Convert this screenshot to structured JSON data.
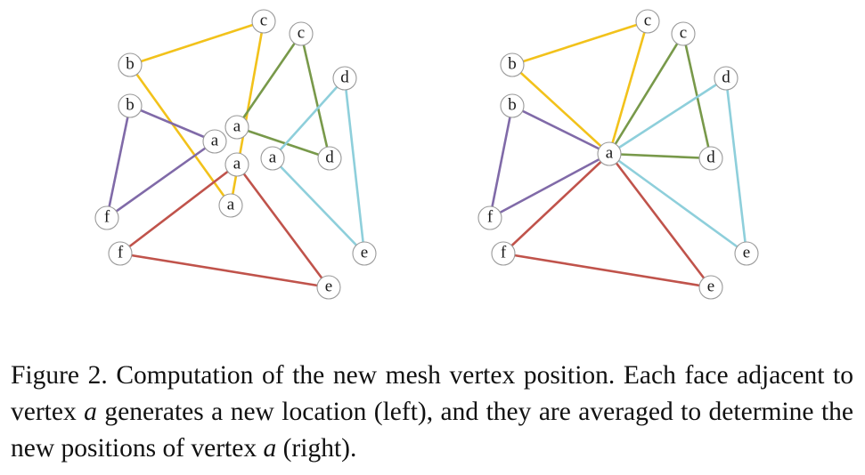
{
  "colors": {
    "b_c": "#f2c21b",
    "c_d": "#78994a",
    "d_e": "#8ecfdb",
    "b_f": "#806aa8",
    "f_e": "#c0534b"
  },
  "left_graph": {
    "nodes": [
      {
        "id": "c_top",
        "label": "c"
      },
      {
        "id": "c_right",
        "label": "c"
      },
      {
        "id": "b_top",
        "label": "b"
      },
      {
        "id": "b_mid",
        "label": "b"
      },
      {
        "id": "d_top",
        "label": "d"
      },
      {
        "id": "a_green",
        "label": "a"
      },
      {
        "id": "a_purple",
        "label": "a"
      },
      {
        "id": "a_red",
        "label": "a"
      },
      {
        "id": "a_cyan",
        "label": "a"
      },
      {
        "id": "d_mid",
        "label": "d"
      },
      {
        "id": "a_yellow",
        "label": "a"
      },
      {
        "id": "f_top",
        "label": "f"
      },
      {
        "id": "f_bottom",
        "label": "f"
      },
      {
        "id": "e_right",
        "label": "e"
      },
      {
        "id": "e_bottom",
        "label": "e"
      }
    ],
    "edges": [
      {
        "from": "b_top",
        "to": "c_top",
        "color": "b_c"
      },
      {
        "from": "b_top",
        "to": "a_yellow",
        "color": "b_c"
      },
      {
        "from": "c_top",
        "to": "a_yellow",
        "color": "b_c"
      },
      {
        "from": "c_right",
        "to": "a_green",
        "color": "c_d"
      },
      {
        "from": "c_right",
        "to": "d_mid",
        "color": "c_d"
      },
      {
        "from": "a_green",
        "to": "d_mid",
        "color": "c_d"
      },
      {
        "from": "d_top",
        "to": "a_cyan",
        "color": "d_e"
      },
      {
        "from": "d_top",
        "to": "e_right",
        "color": "d_e"
      },
      {
        "from": "a_cyan",
        "to": "e_right",
        "color": "d_e"
      },
      {
        "from": "b_mid",
        "to": "a_purple",
        "color": "b_f"
      },
      {
        "from": "b_mid",
        "to": "f_top",
        "color": "b_f"
      },
      {
        "from": "a_purple",
        "to": "f_top",
        "color": "b_f"
      },
      {
        "from": "a_red",
        "to": "f_bottom",
        "color": "f_e"
      },
      {
        "from": "a_red",
        "to": "e_bottom",
        "color": "f_e"
      },
      {
        "from": "f_bottom",
        "to": "e_bottom",
        "color": "f_e"
      }
    ]
  },
  "right_graph": {
    "nodes": [
      {
        "id": "c_top",
        "label": "c"
      },
      {
        "id": "c_right",
        "label": "c"
      },
      {
        "id": "b_top",
        "label": "b"
      },
      {
        "id": "b_mid",
        "label": "b"
      },
      {
        "id": "d_top",
        "label": "d"
      },
      {
        "id": "a_center",
        "label": "a"
      },
      {
        "id": "d_mid",
        "label": "d"
      },
      {
        "id": "f_top",
        "label": "f"
      },
      {
        "id": "f_bottom",
        "label": "f"
      },
      {
        "id": "e_right",
        "label": "e"
      },
      {
        "id": "e_bottom",
        "label": "e"
      }
    ],
    "edges": [
      {
        "from": "b_top",
        "to": "c_top",
        "color": "b_c"
      },
      {
        "from": "b_top",
        "to": "a_center",
        "color": "b_c"
      },
      {
        "from": "c_top",
        "to": "a_center",
        "color": "b_c"
      },
      {
        "from": "c_right",
        "to": "a_center",
        "color": "c_d"
      },
      {
        "from": "c_right",
        "to": "d_mid",
        "color": "c_d"
      },
      {
        "from": "a_center",
        "to": "d_mid",
        "color": "c_d"
      },
      {
        "from": "d_top",
        "to": "a_center",
        "color": "d_e"
      },
      {
        "from": "d_top",
        "to": "e_right",
        "color": "d_e"
      },
      {
        "from": "a_center",
        "to": "e_right",
        "color": "d_e"
      },
      {
        "from": "b_mid",
        "to": "a_center",
        "color": "b_f"
      },
      {
        "from": "b_mid",
        "to": "f_top",
        "color": "b_f"
      },
      {
        "from": "a_center",
        "to": "f_top",
        "color": "b_f"
      },
      {
        "from": "a_center",
        "to": "f_bottom",
        "color": "f_e"
      },
      {
        "from": "a_center",
        "to": "e_bottom",
        "color": "f_e"
      },
      {
        "from": "f_bottom",
        "to": "e_bottom",
        "color": "f_e"
      }
    ]
  },
  "caption": {
    "part1": "Figure 2. Computation of the new mesh vertex position. Each face adjacent to vertex ",
    "var1": "a",
    "part2": " generates a new location (left), and they are averaged to determine the new positions of vertex ",
    "var2": "a",
    "part3": " (right)."
  }
}
